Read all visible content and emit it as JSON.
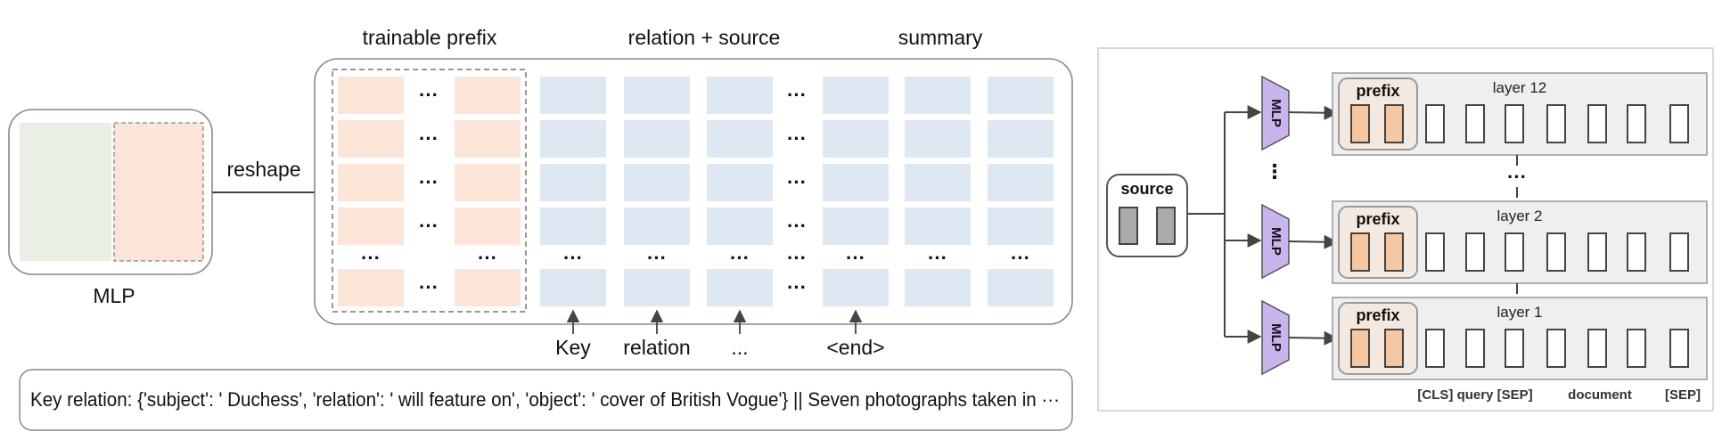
{
  "left": {
    "mlp_label": "MLP",
    "reshape_label": "reshape",
    "headers": {
      "prefix": "trainable prefix",
      "relsrc": "relation + source",
      "summary": "summary"
    },
    "ellipsis": "···",
    "token_labels": [
      "Key",
      "relation",
      "...",
      "<end>"
    ],
    "example_text": "Key relation: {'subject': ' Duchess', 'relation': ' will feature on', 'object': ' cover of British Vogue'} || Seven photographs taken in ···"
  },
  "right": {
    "source_label": "source",
    "mlp_label": "MLP",
    "prefix_label": "prefix",
    "layers": [
      "layer 12",
      "layer 2",
      "layer 1"
    ],
    "vdots": "⋮",
    "gap_dots": "···",
    "bottom_labels": [
      "[CLS] query [SEP]",
      "document",
      "[SEP]"
    ]
  },
  "colors": {
    "peach": "#fbe5d8",
    "green": "#e9f0e3",
    "blue": "#dde8f2",
    "purple": "#c9b4ee",
    "orange": "#f5c6a0",
    "gray": "#aaaaaa"
  }
}
